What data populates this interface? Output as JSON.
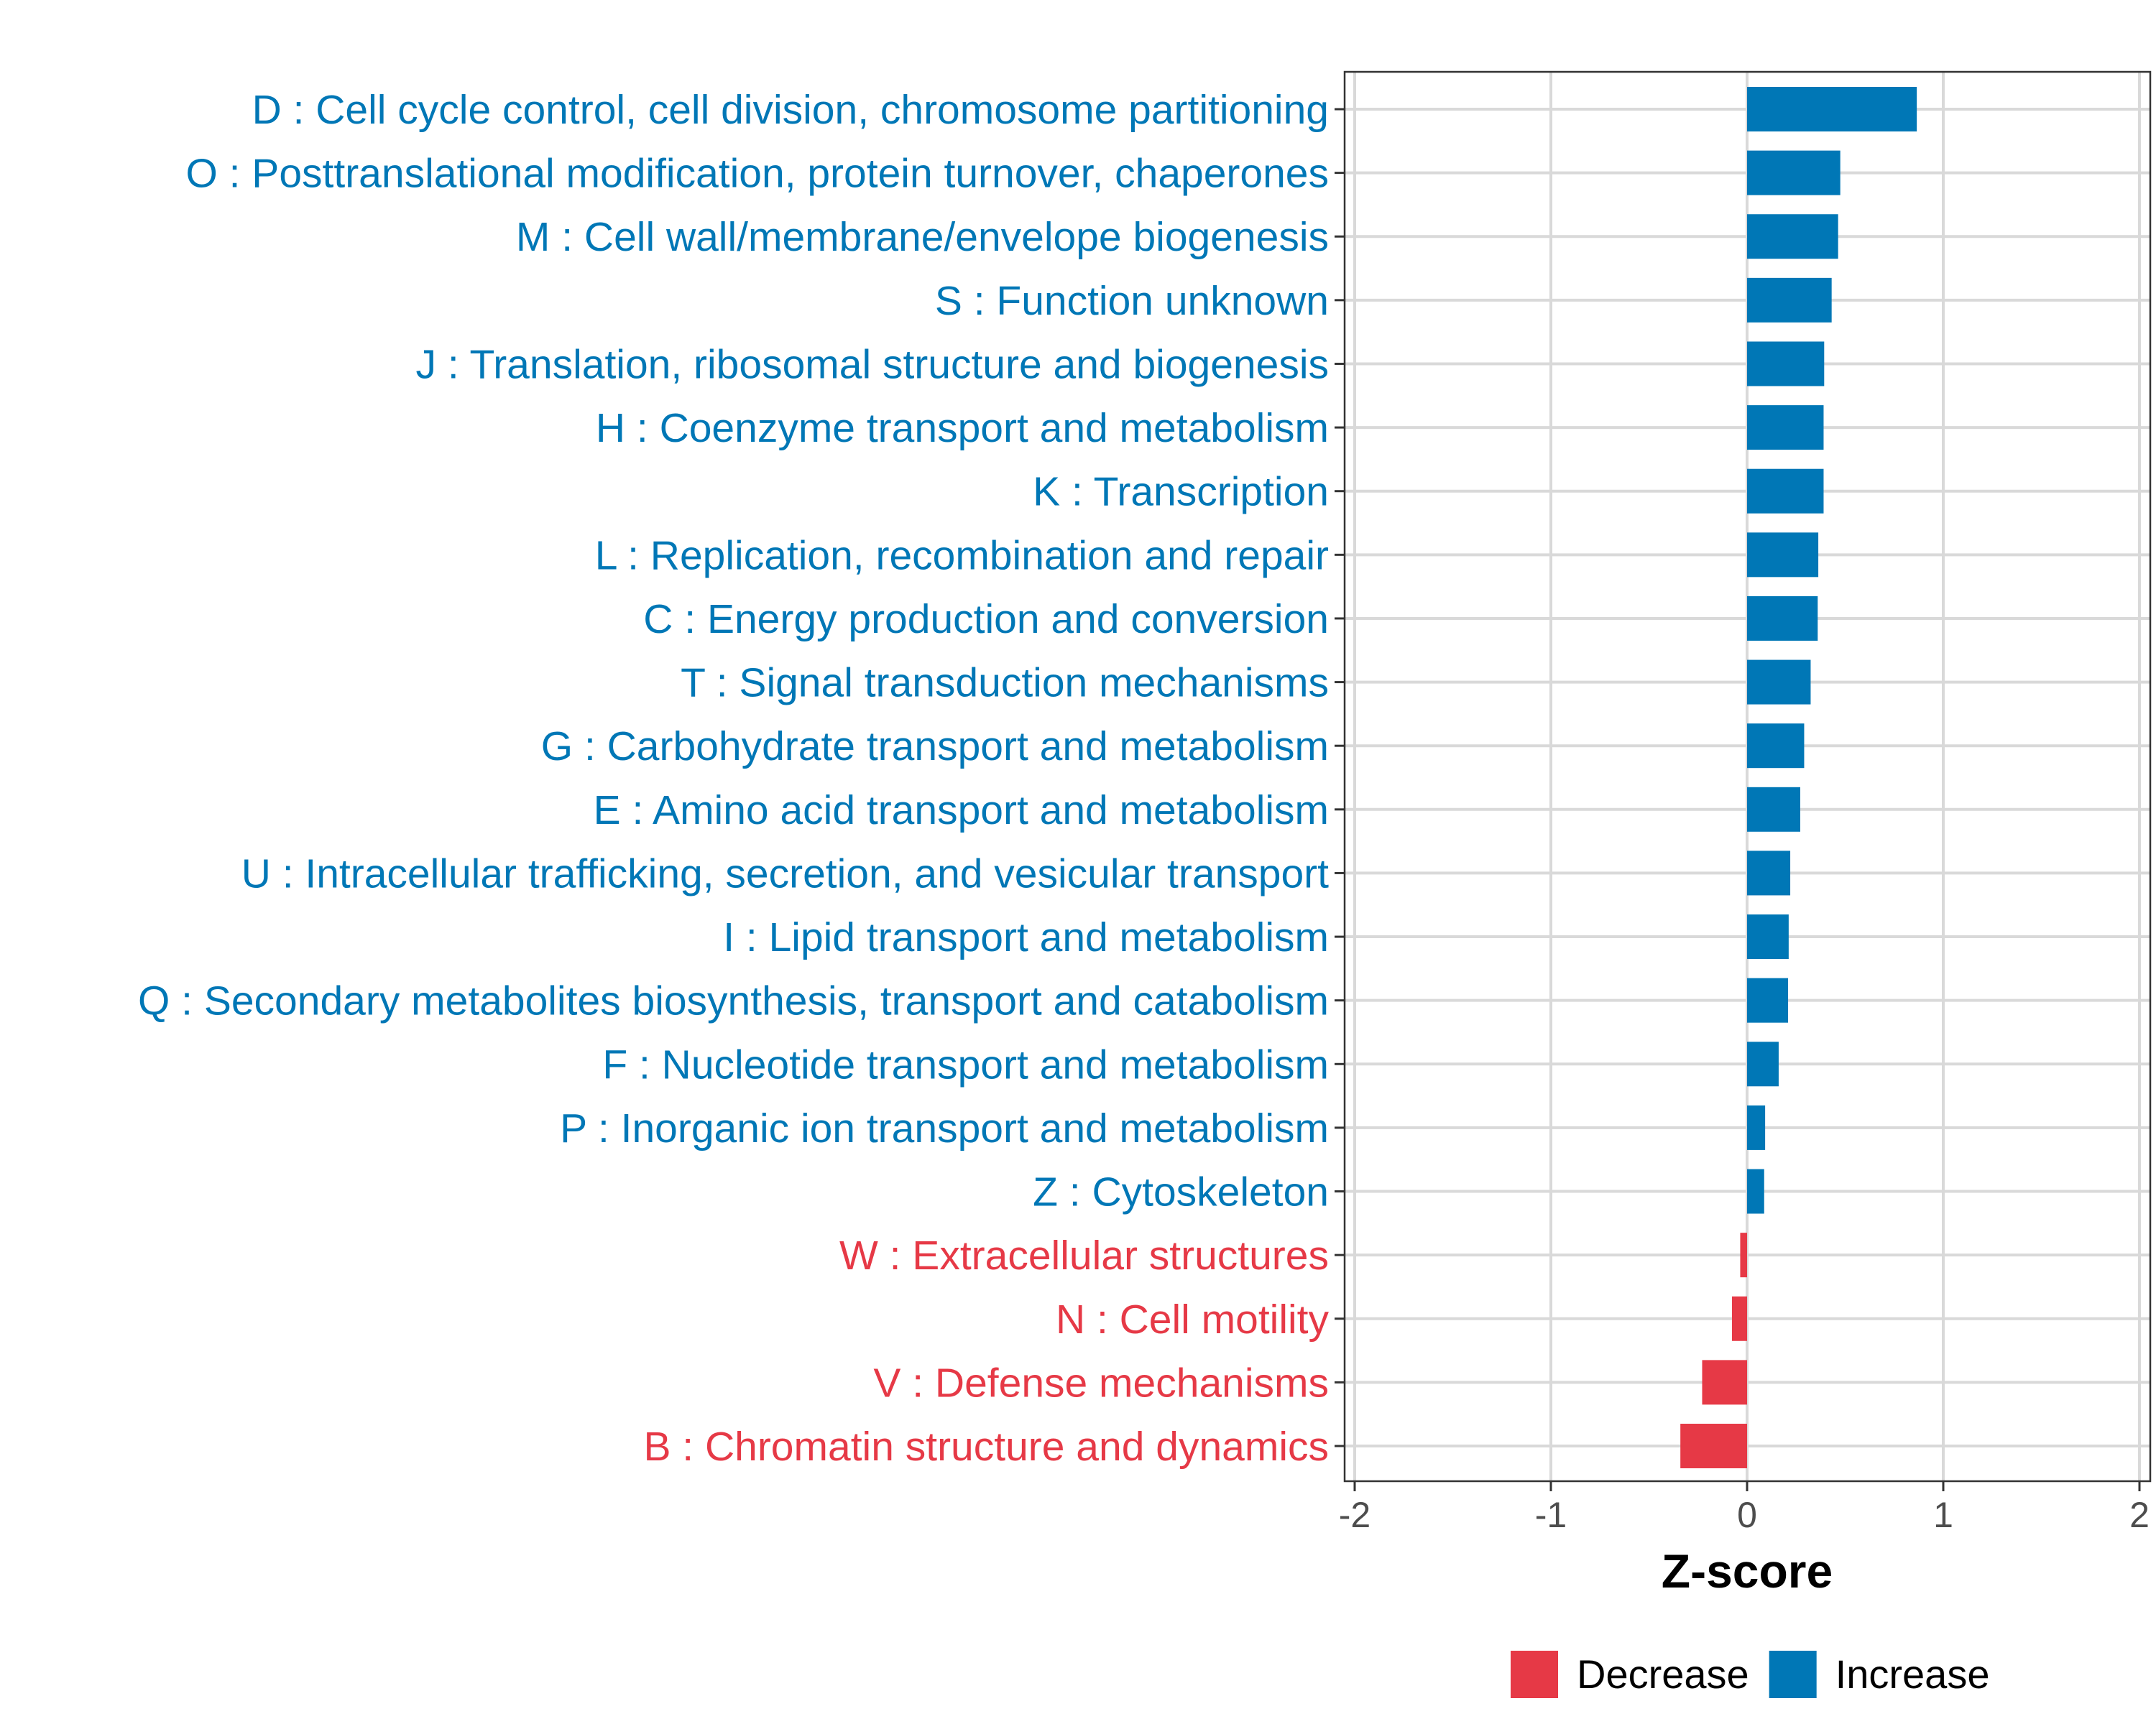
{
  "chart_data": {
    "type": "bar",
    "orientation": "horizontal",
    "title": "",
    "xlabel": "Z-score",
    "ylabel": "",
    "xlim": [
      -2,
      2
    ],
    "xticks": [
      "-2",
      "-1",
      "0",
      "1",
      "2"
    ],
    "xtick_values": [
      -2,
      -1,
      0,
      1,
      2
    ],
    "grid": true,
    "legend_position": "bottom",
    "colors": {
      "Decrease": "#E63946",
      "Increase": "#0077B6"
    },
    "legend": [
      {
        "label": "Decrease",
        "color": "#E63946"
      },
      {
        "label": "Increase",
        "color": "#0077B6"
      }
    ],
    "categories": [
      "D : Cell cycle control, cell division, chromosome partitioning",
      "O : Posttranslational modification, protein turnover, chaperones",
      "M : Cell wall/membrane/envelope biogenesis",
      "S : Function unknown",
      "J : Translation, ribosomal structure and biogenesis",
      "H : Coenzyme transport and metabolism",
      "K : Transcription",
      "L : Replication, recombination and repair",
      "C : Energy production and conversion",
      "T : Signal transduction mechanisms",
      "G : Carbohydrate transport and metabolism",
      "E : Amino acid transport and metabolism",
      "U : Intracellular trafficking, secretion, and vesicular transport",
      "I : Lipid transport and metabolism",
      "Q : Secondary metabolites biosynthesis, transport and catabolism",
      "F : Nucleotide transport and metabolism",
      "P : Inorganic ion transport and metabolism",
      "Z : Cytoskeleton",
      "W : Extracellular structures",
      "N : Cell motility",
      "V : Defense mechanisms",
      "B : Chromatin structure and dynamics"
    ],
    "values": [
      0.865,
      0.475,
      0.464,
      0.431,
      0.393,
      0.39,
      0.39,
      0.363,
      0.36,
      0.324,
      0.291,
      0.271,
      0.22,
      0.212,
      0.209,
      0.161,
      0.092,
      0.087,
      -0.035,
      -0.077,
      -0.229,
      -0.34
    ],
    "groups": [
      "Increase",
      "Increase",
      "Increase",
      "Increase",
      "Increase",
      "Increase",
      "Increase",
      "Increase",
      "Increase",
      "Increase",
      "Increase",
      "Increase",
      "Increase",
      "Increase",
      "Increase",
      "Increase",
      "Increase",
      "Increase",
      "Decrease",
      "Decrease",
      "Decrease",
      "Decrease"
    ]
  }
}
